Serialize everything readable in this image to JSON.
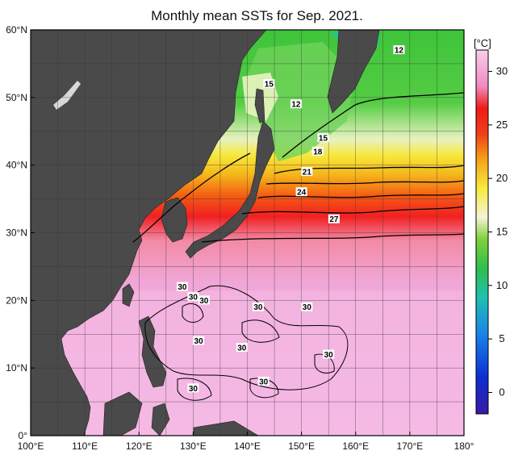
{
  "title": "Monthly mean SSTs for Sep. 2021.",
  "colorbar": {
    "unit": "[°C]",
    "ticks": [
      "30",
      "25",
      "20",
      "15",
      "10",
      "5",
      "0"
    ],
    "tick_values": [
      30,
      25,
      20,
      15,
      10,
      5,
      0
    ],
    "range": [
      -2,
      32
    ],
    "colors": [
      "#2a1a9e",
      "#0b2fd1",
      "#1a7ee8",
      "#1fc0c9",
      "#27b86a",
      "#3ec43a",
      "#7fd03a",
      "#c8e688",
      "#f6f3c8",
      "#f7ea3a",
      "#f6b21a",
      "#f46a14",
      "#f01a14",
      "#f0a0c8",
      "#f6c8e6"
    ]
  },
  "axes": {
    "lat_labels": [
      "60°N",
      "50°N",
      "40°N",
      "30°N",
      "20°N",
      "10°N",
      "0°"
    ],
    "lat_values": [
      60,
      50,
      40,
      30,
      20,
      10,
      0
    ],
    "lon_labels": [
      "100°E",
      "110°E",
      "120°E",
      "130°E",
      "140°E",
      "150°E",
      "160°E",
      "170°E",
      "180°"
    ],
    "lon_values": [
      100,
      110,
      120,
      130,
      140,
      150,
      160,
      170,
      180
    ],
    "lat_range": [
      0,
      60
    ],
    "lon_range": [
      100,
      180
    ]
  },
  "contour_labels": [
    {
      "text": "12",
      "lon": 168,
      "lat": 57
    },
    {
      "text": "15",
      "lon": 144,
      "lat": 52
    },
    {
      "text": "12",
      "lon": 149,
      "lat": 49
    },
    {
      "text": "15",
      "lon": 154,
      "lat": 44
    },
    {
      "text": "18",
      "lon": 153,
      "lat": 42
    },
    {
      "text": "21",
      "lon": 151,
      "lat": 39
    },
    {
      "text": "24",
      "lon": 150,
      "lat": 36
    },
    {
      "text": "27",
      "lon": 156,
      "lat": 32
    },
    {
      "text": "30",
      "lon": 128,
      "lat": 22
    },
    {
      "text": "30",
      "lon": 130,
      "lat": 20.5
    },
    {
      "text": "30",
      "lon": 132,
      "lat": 20
    },
    {
      "text": "30",
      "lon": 142,
      "lat": 19
    },
    {
      "text": "30",
      "lon": 151,
      "lat": 19
    },
    {
      "text": "30",
      "lon": 131,
      "lat": 14
    },
    {
      "text": "30",
      "lon": 139,
      "lat": 13
    },
    {
      "text": "30",
      "lon": 155,
      "lat": 12
    },
    {
      "text": "30",
      "lon": 143,
      "lat": 8
    },
    {
      "text": "30",
      "lon": 130,
      "lat": 7
    }
  ]
}
